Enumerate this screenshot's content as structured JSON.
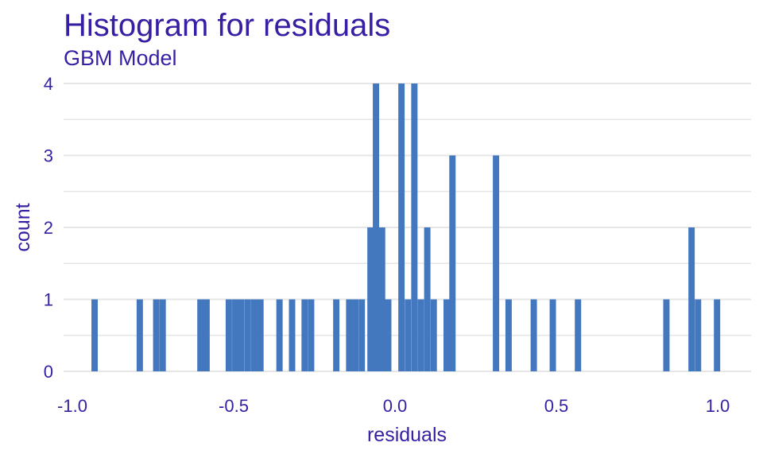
{
  "chart_data": {
    "type": "bar",
    "title": "Histogram for residuals",
    "subtitle": "GBM Model",
    "xlabel": "residuals",
    "ylabel": "count",
    "xlim": [
      -1.05,
      1.05
    ],
    "ylim": [
      0,
      4.1
    ],
    "x_ticks": [
      -1.0,
      -0.5,
      0.0,
      0.5,
      1.0
    ],
    "x_tick_labels": [
      "-1.0",
      "-0.5",
      "0.0",
      "0.5",
      "1.0"
    ],
    "y_ticks": [
      0,
      1,
      2,
      3,
      4
    ],
    "y_tick_labels": [
      "0",
      "1",
      "2",
      "3",
      "4"
    ],
    "grid": true,
    "bar_color": "#4378bf",
    "bin_width": 0.0196,
    "bins": [
      {
        "x": -0.931,
        "count": 1
      },
      {
        "x": -0.791,
        "count": 1
      },
      {
        "x": -0.74,
        "count": 1
      },
      {
        "x": -0.72,
        "count": 1
      },
      {
        "x": -0.603,
        "count": 1
      },
      {
        "x": -0.584,
        "count": 1
      },
      {
        "x": -0.515,
        "count": 1
      },
      {
        "x": -0.495,
        "count": 1
      },
      {
        "x": -0.476,
        "count": 1
      },
      {
        "x": -0.456,
        "count": 1
      },
      {
        "x": -0.436,
        "count": 1
      },
      {
        "x": -0.417,
        "count": 1
      },
      {
        "x": -0.358,
        "count": 1
      },
      {
        "x": -0.319,
        "count": 1
      },
      {
        "x": -0.28,
        "count": 1
      },
      {
        "x": -0.26,
        "count": 1
      },
      {
        "x": -0.182,
        "count": 1
      },
      {
        "x": -0.142,
        "count": 1
      },
      {
        "x": -0.123,
        "count": 1
      },
      {
        "x": -0.103,
        "count": 1
      },
      {
        "x": -0.076,
        "count": 2
      },
      {
        "x": -0.059,
        "count": 4
      },
      {
        "x": -0.04,
        "count": 2
      },
      {
        "x": -0.021,
        "count": 1
      },
      {
        "x": 0.02,
        "count": 4
      },
      {
        "x": 0.04,
        "count": 1
      },
      {
        "x": 0.06,
        "count": 4
      },
      {
        "x": 0.08,
        "count": 1
      },
      {
        "x": 0.1,
        "count": 2
      },
      {
        "x": 0.12,
        "count": 1
      },
      {
        "x": 0.16,
        "count": 1
      },
      {
        "x": 0.178,
        "count": 3
      },
      {
        "x": 0.313,
        "count": 3
      },
      {
        "x": 0.352,
        "count": 1
      },
      {
        "x": 0.43,
        "count": 1
      },
      {
        "x": 0.489,
        "count": 1
      },
      {
        "x": 0.567,
        "count": 1
      },
      {
        "x": 0.841,
        "count": 1
      },
      {
        "x": 0.919,
        "count": 2
      },
      {
        "x": 0.939,
        "count": 1
      },
      {
        "x": 0.998,
        "count": 1
      }
    ]
  }
}
